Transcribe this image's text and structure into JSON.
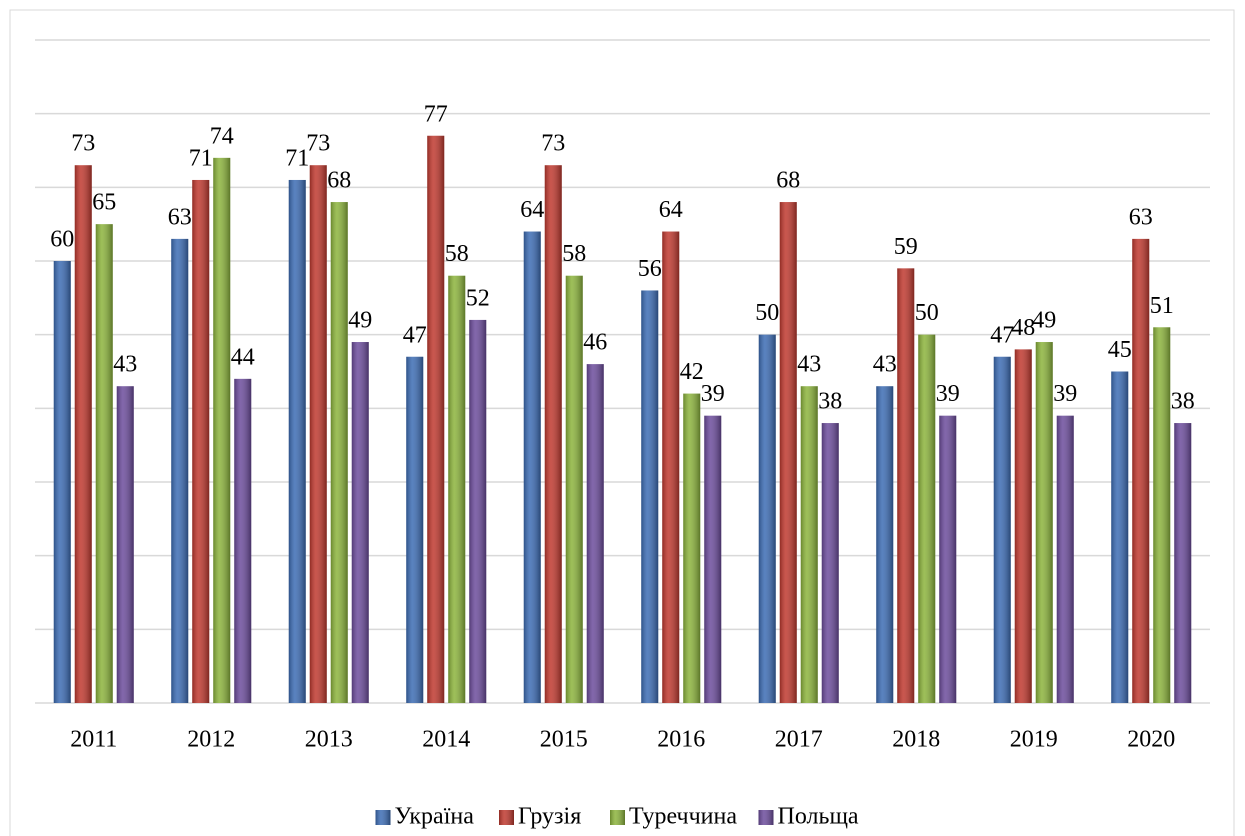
{
  "chart_data": {
    "type": "bar",
    "categories": [
      "2011",
      "2012",
      "2013",
      "2014",
      "2015",
      "2016",
      "2017",
      "2018",
      "2019",
      "2020"
    ],
    "series": [
      {
        "name": "Україна",
        "color": "#3c6cb4",
        "values": [
          60,
          63,
          71,
          47,
          64,
          56,
          50,
          43,
          47,
          45
        ]
      },
      {
        "name": "Грузія",
        "color": "#c0392f",
        "values": [
          73,
          71,
          73,
          77,
          73,
          64,
          68,
          59,
          48,
          63
        ]
      },
      {
        "name": "Туреччина",
        "color": "#8cb43c",
        "values": [
          65,
          74,
          68,
          58,
          58,
          42,
          43,
          50,
          49,
          51
        ]
      },
      {
        "name": "Польща",
        "color": "#6c4c9c",
        "values": [
          43,
          44,
          49,
          52,
          46,
          39,
          38,
          39,
          39,
          38
        ]
      }
    ],
    "ylim": [
      0,
      90
    ],
    "yticks": [
      0,
      10,
      20,
      30,
      40,
      50,
      60,
      70,
      80,
      90
    ],
    "grid": true,
    "legend": "bottom"
  }
}
